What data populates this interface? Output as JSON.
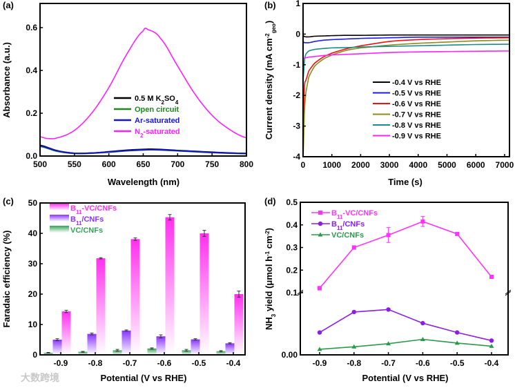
{
  "watermark": "大数跨境",
  "chart_data": [
    {
      "panel": "(a)",
      "type": "line",
      "xlabel": "Wavelength (nm)",
      "ylabel": "Absorbance (a.u.)",
      "xlim": [
        500,
        800
      ],
      "ylim": [
        0,
        0.7
      ],
      "xticks": [
        500,
        550,
        600,
        650,
        700,
        750,
        800
      ],
      "yticks": [
        0.0,
        0.2,
        0.4,
        0.6
      ],
      "ytick_labels": [
        "0.0",
        "0.2",
        "0.4",
        "0.6"
      ],
      "legend_position": "center-right",
      "series": [
        {
          "name": [
            [
              "0.5 M K",
              ""
            ],
            [
              "2",
              "sub"
            ],
            [
              "SO",
              ""
            ],
            [
              "4",
              "sub"
            ]
          ],
          "color": "#000000",
          "x": [
            500,
            525,
            550,
            575,
            600,
            625,
            650,
            665,
            700,
            750,
            800
          ],
          "y": [
            0.05,
            0.025,
            0.013,
            0.014,
            0.02,
            0.027,
            0.031,
            0.032,
            0.026,
            0.018,
            0.012
          ]
        },
        {
          "name": [
            [
              "Open circuit",
              ""
            ]
          ],
          "color": "#1a8a1a",
          "x": [
            500,
            525,
            550,
            575,
            600,
            625,
            650,
            665,
            700,
            750,
            800
          ],
          "y": [
            0.045,
            0.022,
            0.012,
            0.013,
            0.018,
            0.024,
            0.028,
            0.029,
            0.024,
            0.016,
            0.011
          ]
        },
        {
          "name": [
            [
              "Ar-saturated",
              ""
            ]
          ],
          "color": "#1414d0",
          "x": [
            500,
            525,
            550,
            575,
            600,
            625,
            650,
            665,
            700,
            750,
            800
          ],
          "y": [
            0.048,
            0.024,
            0.013,
            0.014,
            0.019,
            0.025,
            0.029,
            0.03,
            0.025,
            0.017,
            0.012
          ]
        },
        {
          "name": [
            [
              "N",
              ""
            ],
            [
              "2",
              "sub"
            ],
            [
              "-saturated",
              ""
            ]
          ],
          "color": "#ff1fff",
          "x": [
            500,
            510,
            525,
            550,
            575,
            600,
            625,
            650,
            657,
            675,
            700,
            725,
            750,
            775,
            800
          ],
          "y": [
            0.09,
            0.082,
            0.085,
            0.12,
            0.2,
            0.32,
            0.47,
            0.585,
            0.59,
            0.55,
            0.42,
            0.29,
            0.19,
            0.125,
            0.085
          ]
        }
      ]
    },
    {
      "panel": "(b)",
      "type": "line",
      "xlabel": "Time (s)",
      "ylabel": [
        [
          "Current density (mA cm",
          ""
        ],
        [
          "-2",
          "sup"
        ],
        [
          "geo",
          "sub"
        ],
        [
          ")",
          ""
        ]
      ],
      "xlim": [
        0,
        7200
      ],
      "ylim": [
        -4,
        1
      ],
      "xticks": [
        0,
        1000,
        2000,
        3000,
        4000,
        5000,
        6000,
        7000
      ],
      "yticks": [
        -4,
        -3,
        -2,
        -1,
        0,
        1
      ],
      "legend_position": "center-right",
      "x": [
        0,
        50,
        100,
        200,
        400,
        700,
        1000,
        1500,
        2000,
        3000,
        4000,
        5000,
        6000,
        7200
      ],
      "series": [
        {
          "name": "-0.4 V vs RHE",
          "color": "#000000",
          "y": [
            -0.05,
            -0.08,
            -0.09,
            -0.09,
            -0.07,
            -0.06,
            -0.05,
            -0.04,
            -0.04,
            -0.03,
            -0.03,
            -0.03,
            -0.03,
            -0.03
          ]
        },
        {
          "name": "-0.5 V vs RHE",
          "color": "#1a1aff",
          "y": [
            -0.25,
            -0.28,
            -0.28,
            -0.28,
            -0.24,
            -0.2,
            -0.18,
            -0.16,
            -0.14,
            -0.12,
            -0.1,
            -0.1,
            -0.1,
            -0.1
          ]
        },
        {
          "name": "-0.6 V vs RHE",
          "color": "#ee1111",
          "y": [
            -3.0,
            -1.7,
            -1.5,
            -1.2,
            -0.95,
            -0.75,
            -0.62,
            -0.48,
            -0.38,
            -0.24,
            -0.18,
            -0.15,
            -0.13,
            -0.12
          ]
        },
        {
          "name": "-0.7 V vs RHE",
          "color": "#8b8b1a",
          "y": [
            -4,
            -2.5,
            -1.9,
            -1.4,
            -1.05,
            -0.82,
            -0.68,
            -0.53,
            -0.45,
            -0.36,
            -0.3,
            -0.26,
            -0.22,
            -0.2
          ]
        },
        {
          "name": "-0.8 V vs RHE",
          "color": "#1a8a8a",
          "y": [
            -1.5,
            -0.85,
            -0.65,
            -0.55,
            -0.5,
            -0.47,
            -0.45,
            -0.44,
            -0.42,
            -0.4,
            -0.38,
            -0.36,
            -0.34,
            -0.33
          ]
        },
        {
          "name": "-0.9 V vs RHE",
          "color": "#ff22ff",
          "y": [
            -0.8,
            -0.78,
            -0.77,
            -0.75,
            -0.73,
            -0.7,
            -0.68,
            -0.66,
            -0.64,
            -0.6,
            -0.58,
            -0.57,
            -0.56,
            -0.55
          ]
        }
      ]
    },
    {
      "panel": "(c)",
      "type": "bar",
      "xlabel": "Potential (V vs RHE)",
      "ylabel": "Faradaic efficiency (%)",
      "ylim": [
        0,
        50
      ],
      "yticks": [
        0,
        10,
        20,
        30,
        40,
        50
      ],
      "categories": [
        "-0.9",
        "-0.8",
        "-0.7",
        "-0.6",
        "-0.5",
        "-0.4"
      ],
      "legend_position": "top-left",
      "series": [
        {
          "name": [
            [
              "VC/CNFs",
              ""
            ]
          ],
          "color": "#33a355",
          "values": [
            0.7,
            1.0,
            1.5,
            2.1,
            1.5,
            1.2
          ],
          "errors": [
            0.1,
            0.15,
            0.3,
            0.2,
            0.3,
            0.2
          ]
        },
        {
          "name": [
            [
              "B",
              ""
            ],
            [
              "11",
              "sub"
            ],
            [
              "/CNFs",
              ""
            ]
          ],
          "color": "#8833ff",
          "values": [
            5.0,
            6.9,
            8.0,
            6.1,
            5.1,
            3.8
          ],
          "errors": [
            0.3,
            0.3,
            0.2,
            0.5,
            0.2,
            0.2
          ]
        },
        {
          "name": [
            [
              "B",
              ""
            ],
            [
              "11",
              "sub"
            ],
            [
              "-VC/CNFs",
              ""
            ]
          ],
          "color": "#ff2fee",
          "values": [
            14.3,
            31.8,
            38.1,
            45.3,
            40.0,
            20.0
          ],
          "errors": [
            0.4,
            0.2,
            0.4,
            0.9,
            1.0,
            1.0
          ]
        }
      ]
    },
    {
      "panel": "(d)",
      "type": "line",
      "xlabel": "Potential (V vs RHE)",
      "ylabel": [
        [
          "NH",
          ""
        ],
        [
          "3",
          "sub"
        ],
        [
          " yield (μmol h",
          ""
        ],
        [
          "-1",
          "sup"
        ],
        [
          " cm",
          ""
        ],
        [
          "-2",
          "sup"
        ],
        [
          ")",
          ""
        ]
      ],
      "ylim": [
        0,
        0.5
      ],
      "axis_break": 0.1,
      "yticks": [
        0.0,
        0.1,
        0.2,
        0.3,
        0.4,
        0.5
      ],
      "ytick_labels": [
        "0.00",
        "0.1",
        "0.2",
        "0.3",
        "0.4",
        "0.5"
      ],
      "x": [
        -0.9,
        -0.8,
        -0.7,
        -0.6,
        -0.5,
        -0.4
      ],
      "xticks": [
        "-0.9",
        "-0.8",
        "-0.7",
        "-0.6",
        "-0.5",
        "-0.4"
      ],
      "legend_position": "top-left",
      "series": [
        {
          "name": [
            [
              "B",
              ""
            ],
            [
              "11",
              "sub"
            ],
            [
              "-VC/CNFs",
              ""
            ]
          ],
          "marker": "square",
          "color": "#ff33ff",
          "y": [
            0.12,
            0.3,
            0.355,
            0.415,
            0.36,
            0.17
          ],
          "errors": [
            0.008,
            0.008,
            0.033,
            0.022,
            0.006,
            0.007
          ]
        },
        {
          "name": [
            [
              "B",
              ""
            ],
            [
              "11",
              "sub"
            ],
            [
              "/CNFs",
              ""
            ]
          ],
          "marker": "circle",
          "color": "#8a1ee6",
          "y": [
            0.036,
            0.069,
            0.073,
            0.051,
            0.036,
            0.023
          ],
          "errors": [
            0,
            0,
            0,
            0,
            0,
            0
          ]
        },
        {
          "name": [
            [
              "VC/CNFs",
              ""
            ]
          ],
          "marker": "triangle",
          "color": "#2a9a4a",
          "y": [
            0.009,
            0.013,
            0.018,
            0.025,
            0.019,
            0.014
          ],
          "errors": [
            0,
            0,
            0,
            0,
            0,
            0
          ]
        }
      ]
    }
  ]
}
